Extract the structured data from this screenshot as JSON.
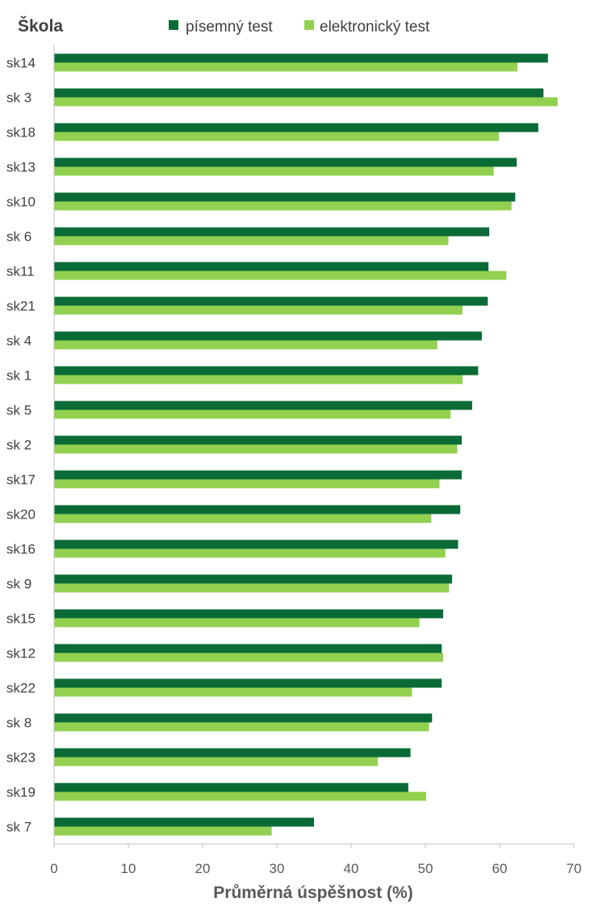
{
  "chart_data": {
    "type": "bar",
    "orientation": "horizontal",
    "title": "",
    "ylabel": "Škola",
    "xlabel": "Průměrná úspěšnost (%)",
    "xlim": [
      0,
      70
    ],
    "xticks": [
      0,
      10,
      20,
      30,
      40,
      50,
      60,
      70
    ],
    "grid": false,
    "legend_position": "top",
    "categories": [
      "sk14",
      "sk 3",
      "sk18",
      "sk13",
      "sk10",
      "sk 6",
      "sk11",
      "sk21",
      "sk 4",
      "sk 1",
      "sk 5",
      "sk 2",
      "sk17",
      "sk20",
      "sk16",
      "sk 9",
      "sk15",
      "sk12",
      "sk22",
      "sk 8",
      "sk23",
      "sk19",
      "sk 7"
    ],
    "series": [
      {
        "name": "písemný test",
        "color": "#0a6b36",
        "values": [
          66.5,
          65.9,
          65.2,
          62.3,
          62.1,
          58.6,
          58.5,
          58.4,
          57.6,
          57.1,
          56.3,
          54.9,
          54.9,
          54.7,
          54.4,
          53.6,
          52.4,
          52.2,
          52.2,
          50.9,
          48.0,
          47.7,
          35.0
        ]
      },
      {
        "name": "elektronický test",
        "color": "#92d050",
        "values": [
          62.4,
          67.8,
          59.9,
          59.2,
          61.6,
          53.1,
          60.9,
          55.0,
          51.6,
          55.0,
          53.4,
          54.3,
          51.9,
          50.8,
          52.7,
          53.2,
          49.2,
          52.4,
          48.2,
          50.5,
          43.6,
          50.1,
          29.3
        ]
      }
    ]
  }
}
